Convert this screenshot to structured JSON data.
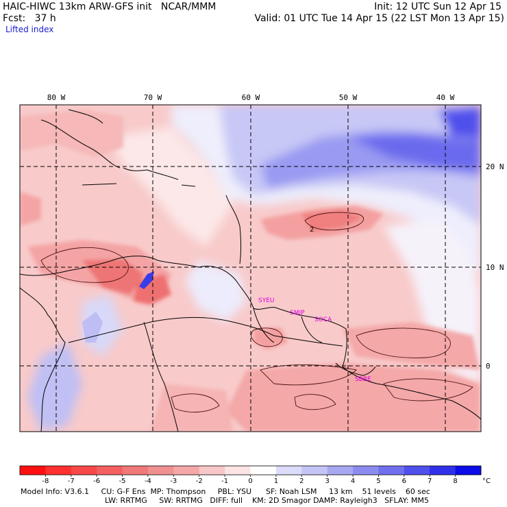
{
  "header": {
    "model_line": "HAIC-HIWC 13km ARW-GFS init   NCAR/MMM",
    "forecast_line": "Fcst:   37 h",
    "field_line": "Lifted index",
    "init_line": "Init: 12 UTC Sun 12 Apr 15",
    "valid_line": "Valid: 01 UTC Tue 14 Apr 15 (22 LST Mon 13 Apr 15)"
  },
  "map": {
    "lon_labels": [
      "80 W",
      "70 W",
      "60 W",
      "50 W",
      "40 W"
    ],
    "lat_labels": [
      "20 N",
      "10 N",
      "0"
    ],
    "contour_labels": [
      "2"
    ],
    "stations": [
      "SYEU",
      "SMJP",
      "SOCA",
      "SBBE"
    ],
    "colors": {
      "station": "#e000e0",
      "warm": "#f07878",
      "cool": "#6060f0"
    }
  },
  "colorbar": {
    "ticks": [
      "-8",
      "-7",
      "-6",
      "-5",
      "-4",
      "-3",
      "-2",
      "-1",
      "0",
      "1",
      "2",
      "3",
      "4",
      "5",
      "6",
      "7",
      "8"
    ],
    "unit": "°C",
    "colors": [
      "#ff1010",
      "#ff3030",
      "#f84848",
      "#f46060",
      "#f07878",
      "#f09090",
      "#f4a8a8",
      "#f8c8c8",
      "#fce4e4",
      "#ffffff",
      "#dcdcfa",
      "#c4c4f6",
      "#a8a8f2",
      "#8c8cf0",
      "#7070ee",
      "#5050ec",
      "#3030ea",
      "#0c0ce8"
    ]
  },
  "footer": {
    "line1": "Model Info: V3.6.1     CU: G-F Ens  MP: Thompson     PBL: YSU      SF: Noah LSM     13 km    51 levels    60 sec",
    "line2": "LW: RRTMG     SW: RRTMG   DIFF: full    KM: 2D Smagor DAMP: Rayleigh3   SFLAY: MM5"
  }
}
